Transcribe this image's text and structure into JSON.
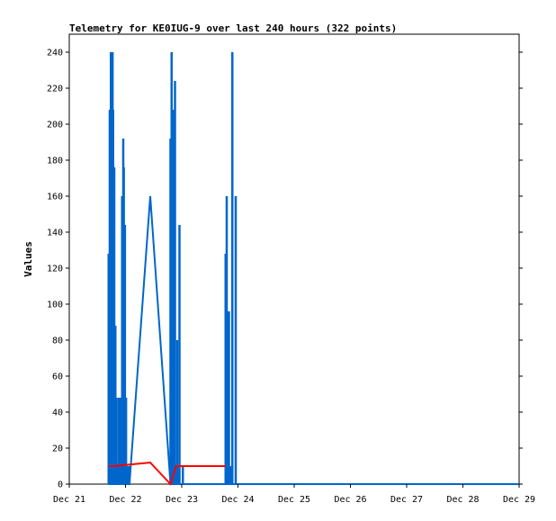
{
  "chart_data": {
    "type": "line",
    "title": "Telemetry for KE0IUG-9 over last 240 hours (322 points)",
    "ylabel": "Values",
    "xlabel": "",
    "ylim": [
      0,
      250
    ],
    "y_ticks": [
      0,
      20,
      40,
      60,
      80,
      100,
      120,
      140,
      160,
      180,
      200,
      220,
      240
    ],
    "x_ticks": [
      "Dec 21",
      "Dec 22",
      "Dec 23",
      "Dec 24",
      "Dec 25",
      "Dec 26",
      "Dec 27",
      "Dec 28",
      "Dec 29"
    ],
    "x_unit": "days since Dec 21 00:00",
    "xlim": [
      0,
      8
    ],
    "grid": false,
    "legend": "none",
    "series": [
      {
        "color": "#0066cc",
        "style": "bars",
        "x": [
          0.7,
          0.72,
          0.74,
          0.75,
          0.77,
          0.78,
          0.8,
          0.82,
          0.84,
          0.86,
          0.88,
          0.9,
          0.92,
          0.94,
          0.96,
          0.97,
          0.99,
          1.01,
          1.03,
          1.05,
          1.07,
          1.8,
          1.82,
          1.84,
          1.86,
          1.88,
          1.9,
          1.92,
          1.94,
          1.96,
          2.02,
          2.78,
          2.8,
          2.82,
          2.84,
          2.86,
          2.9,
          2.96
        ],
        "values": [
          128,
          208,
          240,
          240,
          240,
          208,
          176,
          88,
          48,
          10,
          48,
          48,
          48,
          160,
          192,
          176,
          144,
          48,
          10,
          10,
          10,
          192,
          240,
          160,
          208,
          224,
          10,
          80,
          10,
          144,
          10,
          128,
          160,
          96,
          96,
          10,
          240,
          160
        ]
      },
      {
        "color": "#0066cc",
        "style": "line",
        "x": [
          0.7,
          1.07,
          1.44,
          1.8,
          2.96,
          3.0,
          8.0
        ],
        "values": [
          0,
          0,
          160,
          0,
          0,
          0,
          0
        ]
      },
      {
        "color": "#ff0000",
        "style": "line",
        "x": [
          0.7,
          0.8,
          1.44,
          1.8,
          1.9,
          2.78
        ],
        "values": [
          10,
          10,
          12,
          0,
          10,
          10
        ]
      }
    ]
  }
}
